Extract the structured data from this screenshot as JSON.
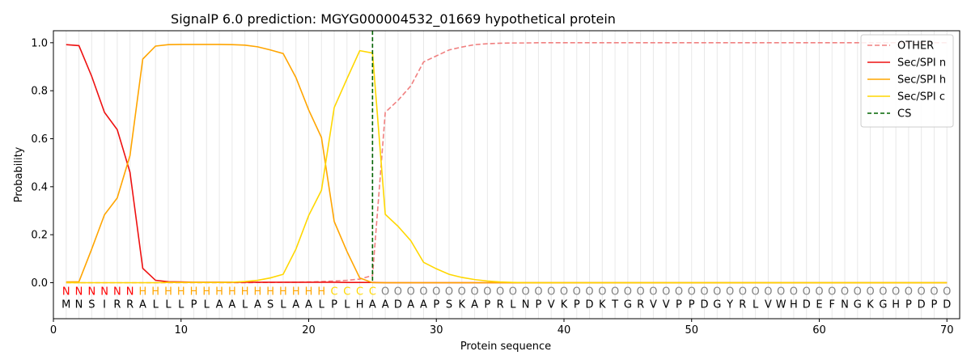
{
  "chart_data": {
    "type": "line",
    "title": "SignalP 6.0 prediction: MGYG000004532_01669 hypothetical protein",
    "xlabel": "Protein sequence",
    "ylabel": "Probability",
    "xlim": [
      0,
      71
    ],
    "ylim": [
      -0.15,
      1.05
    ],
    "x_ticks": [
      0,
      10,
      20,
      30,
      40,
      50,
      60,
      70
    ],
    "y_ticks": [
      "0.0",
      "0.2",
      "0.4",
      "0.6",
      "0.8",
      "1.0"
    ],
    "legend_position": "top-right",
    "sequence": [
      "M",
      "N",
      "S",
      "I",
      "R",
      "R",
      "A",
      "L",
      "L",
      "L",
      "P",
      "L",
      "A",
      "A",
      "L",
      "A",
      "S",
      "L",
      "A",
      "A",
      "L",
      "P",
      "L",
      "H",
      "A",
      "A",
      "D",
      "A",
      "A",
      "P",
      "S",
      "K",
      "A",
      "P",
      "R",
      "L",
      "N",
      "P",
      "V",
      "K",
      "P",
      "D",
      "K",
      "T",
      "G",
      "R",
      "V",
      "V",
      "P",
      "P",
      "D",
      "G",
      "Y",
      "R",
      "L",
      "V",
      "W",
      "H",
      "D",
      "E",
      "F",
      "N",
      "G",
      "K",
      "G",
      "H",
      "P",
      "D",
      "P",
      "D"
    ],
    "labels": [
      "N",
      "N",
      "N",
      "N",
      "N",
      "N",
      "H",
      "H",
      "H",
      "H",
      "H",
      "H",
      "H",
      "H",
      "H",
      "H",
      "H",
      "H",
      "H",
      "H",
      "H",
      "C",
      "C",
      "C",
      "C",
      "O",
      "O",
      "O",
      "O",
      "O",
      "O",
      "O",
      "O",
      "O",
      "O",
      "O",
      "O",
      "O",
      "O",
      "O",
      "O",
      "O",
      "O",
      "O",
      "O",
      "O",
      "O",
      "O",
      "O",
      "O",
      "O",
      "O",
      "O",
      "O",
      "O",
      "O",
      "O",
      "O",
      "O",
      "O",
      "O",
      "O",
      "O",
      "O",
      "O",
      "O",
      "O",
      "O",
      "O",
      "O"
    ],
    "label_colors": {
      "N": "#ff0000",
      "H": "#ffa500",
      "C": "#ffd700",
      "O": "#808080"
    },
    "cs_position": 25,
    "series": [
      {
        "name": "OTHER",
        "color": "#f08080",
        "dash": true,
        "values": [
          0.0,
          0.0,
          0.0,
          0.0,
          0.0,
          0.0,
          0.0,
          0.0,
          0.0,
          0.0,
          0.0,
          0.0,
          0.0,
          0.0,
          0.0,
          0.001,
          0.001,
          0.002,
          0.002,
          0.003,
          0.005,
          0.007,
          0.01,
          0.015,
          0.03,
          0.71,
          0.76,
          0.82,
          0.92,
          0.945,
          0.97,
          0.982,
          0.992,
          0.996,
          0.998,
          0.999,
          0.999,
          1.0,
          1.0,
          1.0,
          1.0,
          1.0,
          1.0,
          1.0,
          1.0,
          1.0,
          1.0,
          1.0,
          1.0,
          1.0,
          1.0,
          1.0,
          1.0,
          1.0,
          1.0,
          1.0,
          1.0,
          1.0,
          1.0,
          1.0,
          1.0,
          1.0,
          1.0,
          1.0,
          1.0,
          1.0,
          1.0,
          1.0,
          1.0,
          1.0
        ]
      },
      {
        "name": "Sec/SPI n",
        "color": "#ee1111",
        "dash": false,
        "values": [
          0.992,
          0.988,
          0.86,
          0.71,
          0.638,
          0.46,
          0.06,
          0.01,
          0.004,
          0.003,
          0.002,
          0.002,
          0.002,
          0.002,
          0.002,
          0.002,
          0.002,
          0.002,
          0.002,
          0.002,
          0.002,
          0.002,
          0.001,
          0.001,
          0.001,
          0.0,
          0.0,
          0.0,
          0.0,
          0.0,
          0.0,
          0.0,
          0.0,
          0.0,
          0.0,
          0.0,
          0.0,
          0.0,
          0.0,
          0.0,
          0.0,
          0.0,
          0.0,
          0.0,
          0.0,
          0.0,
          0.0,
          0.0,
          0.0,
          0.0,
          0.0,
          0.0,
          0.0,
          0.0,
          0.0,
          0.0,
          0.0,
          0.0,
          0.0,
          0.0,
          0.0,
          0.0,
          0.0,
          0.0,
          0.0,
          0.0,
          0.0,
          0.0,
          0.0,
          0.0
        ]
      },
      {
        "name": "Sec/SPI h",
        "color": "#ffa500",
        "dash": false,
        "values": [
          0.003,
          0.004,
          0.14,
          0.283,
          0.353,
          0.53,
          0.932,
          0.986,
          0.992,
          0.993,
          0.993,
          0.993,
          0.993,
          0.992,
          0.99,
          0.983,
          0.97,
          0.955,
          0.855,
          0.72,
          0.605,
          0.255,
          0.13,
          0.02,
          0.0,
          0.0,
          0.0,
          0.0,
          0.0,
          0.0,
          0.0,
          0.0,
          0.0,
          0.0,
          0.0,
          0.0,
          0.0,
          0.0,
          0.0,
          0.0,
          0.0,
          0.0,
          0.0,
          0.0,
          0.0,
          0.0,
          0.0,
          0.0,
          0.0,
          0.0,
          0.0,
          0.0,
          0.0,
          0.0,
          0.0,
          0.0,
          0.0,
          0.0,
          0.0,
          0.0,
          0.0,
          0.0,
          0.0,
          0.0,
          0.0,
          0.0,
          0.0,
          0.0,
          0.0,
          0.0
        ]
      },
      {
        "name": "Sec/SPI c",
        "color": "#ffd700",
        "dash": false,
        "values": [
          0.0,
          0.0,
          0.0,
          0.0,
          0.0,
          0.0,
          0.0,
          0.0,
          0.001,
          0.001,
          0.001,
          0.001,
          0.001,
          0.002,
          0.005,
          0.01,
          0.02,
          0.035,
          0.14,
          0.28,
          0.385,
          0.73,
          0.85,
          0.967,
          0.957,
          0.285,
          0.235,
          0.175,
          0.085,
          0.058,
          0.035,
          0.022,
          0.013,
          0.007,
          0.003,
          0.001,
          0.0,
          0.0,
          0.0,
          0.0,
          0.0,
          0.0,
          0.0,
          0.0,
          0.0,
          0.0,
          0.0,
          0.0,
          0.0,
          0.0,
          0.0,
          0.0,
          0.0,
          0.0,
          0.0,
          0.0,
          0.0,
          0.0,
          0.0,
          0.0,
          0.0,
          0.0,
          0.0,
          0.0,
          0.0,
          0.0,
          0.0,
          0.0,
          0.0,
          0.0
        ]
      }
    ],
    "cs_legend": {
      "name": "CS",
      "color": "#006400"
    }
  }
}
